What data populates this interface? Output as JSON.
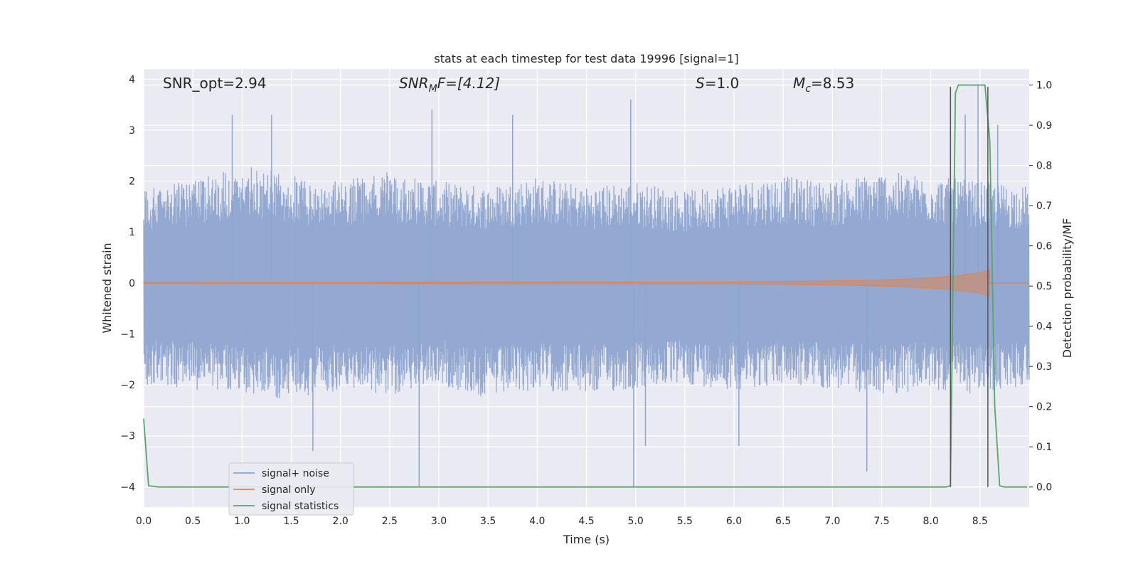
{
  "chart_data": {
    "type": "line",
    "title": "stats at each timestep for test data 19996 [signal=1]",
    "xlabel": "Time (s)",
    "ylabel_left": "Whitened strain",
    "ylabel_right": "Detection probability/MF",
    "xlim": [
      0.0,
      9.0
    ],
    "ylim_left": [
      -4.4,
      4.2
    ],
    "ylim_right": [
      -0.05,
      1.04
    ],
    "x_ticks": [
      "0.0",
      "0.5",
      "1.0",
      "1.5",
      "2.0",
      "2.5",
      "3.0",
      "3.5",
      "4.0",
      "4.5",
      "5.0",
      "5.5",
      "6.0",
      "6.5",
      "7.0",
      "7.5",
      "8.0",
      "8.5"
    ],
    "y_left_ticks": [
      "4",
      "3",
      "2",
      "1",
      "0",
      "−1",
      "−2",
      "−3",
      "−4"
    ],
    "y_right_ticks": [
      "1.0",
      "0.9",
      "0.8",
      "0.7",
      "0.6",
      "0.5",
      "0.4",
      "0.3",
      "0.2",
      "0.1",
      "0.0"
    ],
    "annotations": {
      "snr_opt": "SNR_opt=2.94",
      "snr_mf_main": "SNR",
      "snr_mf_sub": "M",
      "snr_mf_rest": "F=[4.12]",
      "s_main": "S",
      "s_rest": "=1.0",
      "mc_main": "M",
      "mc_sub": "c",
      "mc_rest": "=8.53"
    },
    "grid": true,
    "legend_position": "lower-left",
    "colors": {
      "noise": "#8ea5cf",
      "signal": "#dd8452",
      "statistics": "#55a868",
      "vlines": "#555555",
      "background": "#eaeaf2"
    },
    "series": [
      {
        "name": "signal+ noise",
        "axis": "left",
        "envelope_upper": [
          [
            0.0,
            1.9
          ],
          [
            0.5,
            2.0
          ],
          [
            1.0,
            2.4
          ],
          [
            1.5,
            2.1
          ],
          [
            2.0,
            2.0
          ],
          [
            2.5,
            2.2
          ],
          [
            3.0,
            2.0
          ],
          [
            3.5,
            1.9
          ],
          [
            4.0,
            2.1
          ],
          [
            4.5,
            1.9
          ],
          [
            5.0,
            2.0
          ],
          [
            5.5,
            1.8
          ],
          [
            6.0,
            2.0
          ],
          [
            6.5,
            2.1
          ],
          [
            7.0,
            2.0
          ],
          [
            7.5,
            2.2
          ],
          [
            8.0,
            2.1
          ],
          [
            8.5,
            2.0
          ],
          [
            9.0,
            1.9
          ]
        ],
        "envelope_lower": [
          [
            0.0,
            -2.0
          ],
          [
            0.5,
            -2.1
          ],
          [
            1.0,
            -2.2
          ],
          [
            1.5,
            -2.3
          ],
          [
            2.0,
            -2.1
          ],
          [
            2.5,
            -2.2
          ],
          [
            3.0,
            -2.0
          ],
          [
            3.5,
            -2.3
          ],
          [
            4.0,
            -2.1
          ],
          [
            4.5,
            -2.2
          ],
          [
            5.0,
            -2.1
          ],
          [
            5.5,
            -2.0
          ],
          [
            6.0,
            -2.1
          ],
          [
            6.5,
            -2.0
          ],
          [
            7.0,
            -2.1
          ],
          [
            7.5,
            -2.2
          ],
          [
            8.0,
            -2.1
          ],
          [
            8.5,
            -2.2
          ],
          [
            9.0,
            -2.0
          ]
        ],
        "peaks": [
          [
            0.9,
            3.3
          ],
          [
            1.3,
            3.3
          ],
          [
            2.8,
            -4.0
          ],
          [
            2.93,
            3.4
          ],
          [
            3.75,
            3.3
          ],
          [
            4.95,
            3.6
          ],
          [
            4.98,
            -4.0
          ],
          [
            7.35,
            -3.7
          ],
          [
            8.2,
            3.8
          ],
          [
            8.35,
            3.3
          ],
          [
            8.48,
            3.9
          ],
          [
            8.68,
            3.1
          ],
          [
            1.72,
            -3.3
          ],
          [
            5.1,
            -3.2
          ],
          [
            6.05,
            -3.2
          ]
        ]
      },
      {
        "name": "signal only",
        "axis": "left",
        "envelope": [
          [
            0.0,
            0.01
          ],
          [
            6.0,
            0.02
          ],
          [
            7.0,
            0.04
          ],
          [
            7.5,
            0.06
          ],
          [
            8.0,
            0.1
          ],
          [
            8.3,
            0.15
          ],
          [
            8.5,
            0.2
          ],
          [
            8.6,
            0.26
          ],
          [
            8.62,
            0.0
          ]
        ]
      },
      {
        "name": "signal statistics",
        "axis": "right",
        "points": [
          [
            0.0,
            0.17
          ],
          [
            0.05,
            0.003
          ],
          [
            0.15,
            0.0
          ],
          [
            8.15,
            0.0
          ],
          [
            8.2,
            0.003
          ],
          [
            8.25,
            0.98
          ],
          [
            8.28,
            1.0
          ],
          [
            8.55,
            1.0
          ],
          [
            8.6,
            0.86
          ],
          [
            8.65,
            0.2
          ],
          [
            8.7,
            0.003
          ],
          [
            8.75,
            0.0
          ],
          [
            8.98,
            0.0
          ]
        ]
      }
    ],
    "vlines": [
      8.2,
      8.58
    ]
  }
}
